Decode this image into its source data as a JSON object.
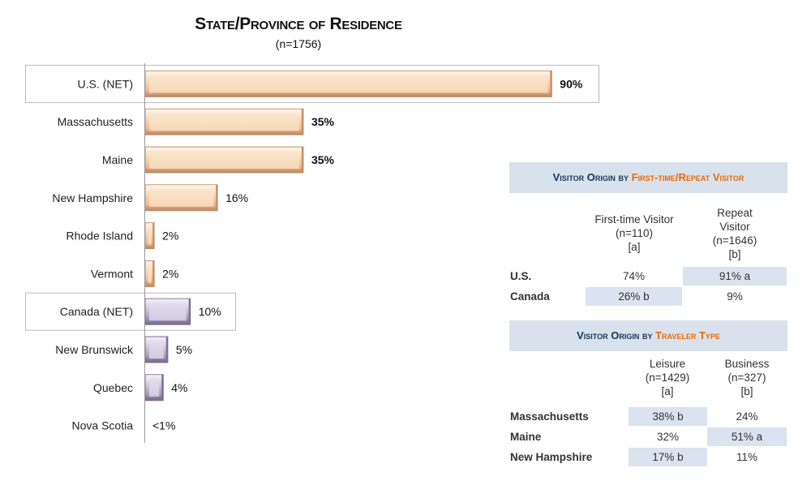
{
  "chart_data": {
    "type": "bar",
    "orientation": "horizontal",
    "title": "State/Province of Residence",
    "subtitle": "(n=1756)",
    "categories": [
      "U.S. (NET)",
      "Massachusetts",
      "Maine",
      "New Hampshire",
      "Rhode Island",
      "Vermont",
      "Canada (NET)",
      "New Brunswick",
      "Quebec",
      "Nova Scotia"
    ],
    "values": [
      90,
      35,
      35,
      16,
      2,
      2,
      10,
      5,
      4,
      0.3
    ],
    "value_labels": [
      "90%",
      "35%",
      "35%",
      "16%",
      "2%",
      "2%",
      "10%",
      "5%",
      "4%",
      "<1%"
    ],
    "groups": [
      "us",
      "us",
      "us",
      "us",
      "us",
      "us",
      "ca",
      "ca",
      "ca",
      "ca"
    ],
    "bold_labels": [
      true,
      true,
      true,
      false,
      false,
      false,
      false,
      false,
      false,
      false
    ],
    "net_rows": [
      true,
      false,
      false,
      false,
      false,
      false,
      true,
      false,
      false,
      false
    ],
    "colors": {
      "us_light": "#fdf0e2",
      "us_mid": "#f3c9a2",
      "us_dark": "#c38f6b",
      "ca_light": "#eeeaf3",
      "ca_mid": "#b8acc8",
      "ca_dark": "#7d7192"
    },
    "xlim": [
      0,
      100
    ]
  },
  "table1": {
    "title_prefix": "Visitor Origin by ",
    "title_highlight": "First-time/Repeat Visitor",
    "col1": [
      "First-time Visitor",
      "(n=110)",
      "[a]"
    ],
    "col2": [
      "Repeat",
      "Visitor",
      "(n=1646)",
      "[b]"
    ],
    "rows": [
      {
        "label": "U.S.",
        "c1": "74%",
        "c2": "91% a"
      },
      {
        "label": "Canada",
        "c1": "26% b",
        "c2": "9%"
      }
    ]
  },
  "table2": {
    "title_prefix": "Visitor Origin by ",
    "title_highlight": "Traveler Type",
    "col1": [
      "Leisure",
      "(n=1429)",
      "[a]"
    ],
    "col2": [
      "Business",
      "(n=327)",
      "[b]"
    ],
    "rows": [
      {
        "label": "Massachusetts",
        "c1": "38% b",
        "c2": "24%"
      },
      {
        "label": "Maine",
        "c1": "32%",
        "c2": "51% a"
      },
      {
        "label": "New Hampshire",
        "c1": "17% b",
        "c2": "11%"
      }
    ]
  }
}
